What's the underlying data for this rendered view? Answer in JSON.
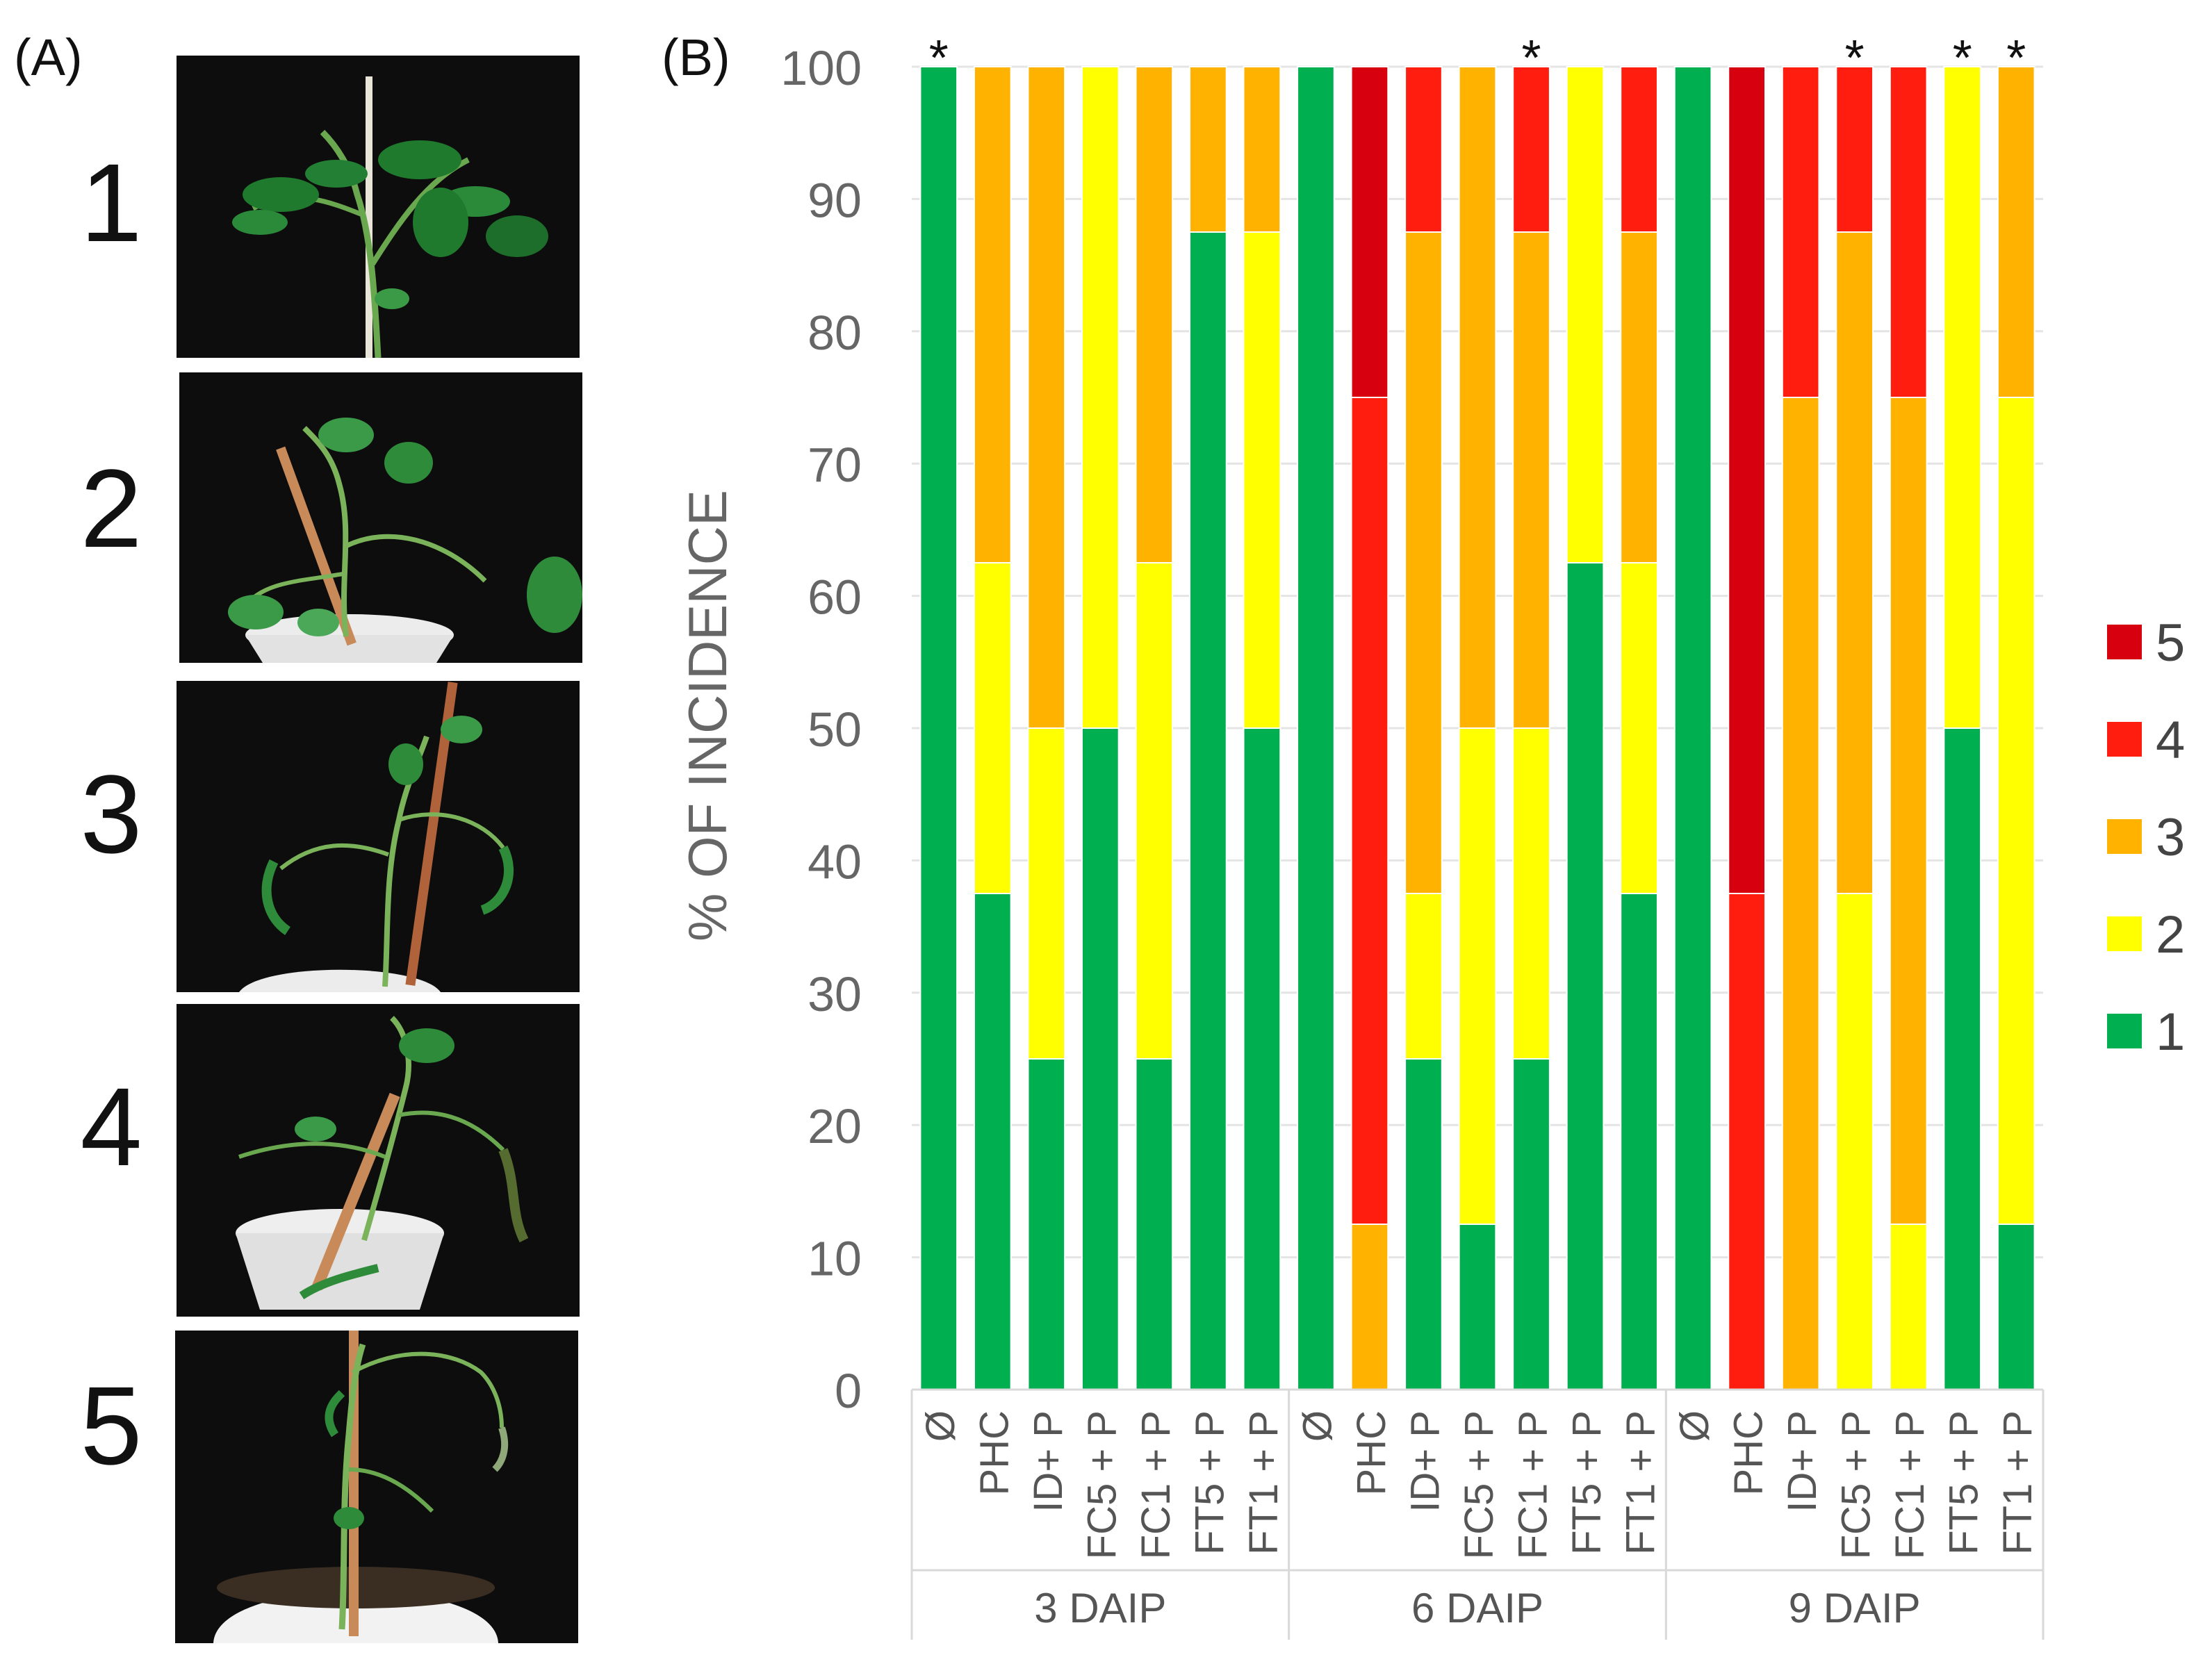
{
  "panel_a": {
    "label": "(A)",
    "scale_labels": [
      "1",
      "2",
      "3",
      "4",
      "5"
    ],
    "photo_icons": [
      "healthy-tomato-plant-photo",
      "slightly-wilted-tomato-plant-photo",
      "wilted-tomato-plant-photo",
      "severely-wilted-tomato-plant-photo",
      "dead-tomato-plant-photo"
    ]
  },
  "panel_b": {
    "label": "(B)"
  },
  "colors": {
    "5": "#d7000f",
    "4": "#ff1d10",
    "3": "#ffb300",
    "2": "#ffff00",
    "1": "#00b050"
  },
  "chart_data": {
    "type": "stacked-bar",
    "ylabel": "% OF INCIDENCE",
    "ylim": [
      0,
      100
    ],
    "yticks": [
      0,
      10,
      20,
      30,
      40,
      50,
      60,
      70,
      80,
      90,
      100
    ],
    "grid": true,
    "legend_position": "right",
    "legend": [
      "5",
      "4",
      "3",
      "2",
      "1"
    ],
    "groups": [
      {
        "name": "3 DAIP",
        "categories": [
          "Ø",
          "PHC",
          "ID+ P",
          "FC5 + P",
          "FC1 + P",
          "FT5 + P",
          "FT1 + P"
        ],
        "significant": [
          true,
          false,
          false,
          false,
          false,
          false,
          false
        ]
      },
      {
        "name": "6 DAIP",
        "categories": [
          "Ø",
          "PHC",
          "ID+ P",
          "FC5 + P",
          "FC1 + P",
          "FT5 + P",
          "FT1 + P"
        ],
        "significant": [
          false,
          false,
          false,
          false,
          true,
          false,
          false
        ]
      },
      {
        "name": "9 DAIP",
        "categories": [
          "Ø",
          "PHC",
          "ID+ P",
          "FC5 + P",
          "FC1 + P",
          "FT5 + P",
          "FT1 + P"
        ],
        "significant": [
          false,
          false,
          false,
          true,
          false,
          true,
          true
        ]
      }
    ],
    "series": [
      {
        "name": "1",
        "values": [
          100,
          37.5,
          25,
          50,
          25,
          87.5,
          50,
          100,
          0,
          25,
          12.5,
          25,
          62.5,
          37.5,
          100,
          0,
          0,
          0,
          0,
          50,
          12.5
        ]
      },
      {
        "name": "2",
        "values": [
          0,
          25,
          25,
          50,
          37.5,
          0,
          37.5,
          0,
          0,
          12.5,
          37.5,
          25,
          37.5,
          25,
          0,
          0,
          0,
          37.5,
          12.5,
          50,
          62.5
        ]
      },
      {
        "name": "3",
        "values": [
          0,
          37.5,
          50,
          0,
          37.5,
          12.5,
          12.5,
          0,
          12.5,
          50,
          50,
          37.5,
          0,
          25,
          0,
          0,
          75,
          50,
          62.5,
          0,
          25
        ]
      },
      {
        "name": "4",
        "values": [
          0,
          0,
          0,
          0,
          0,
          0,
          0,
          0,
          62.5,
          12.5,
          0,
          12.5,
          0,
          12.5,
          0,
          37.5,
          25,
          12.5,
          25,
          0,
          0
        ]
      },
      {
        "name": "5",
        "values": [
          0,
          0,
          0,
          0,
          0,
          0,
          0,
          0,
          25,
          0,
          0,
          0,
          0,
          0,
          0,
          62.5,
          0,
          0,
          0,
          0,
          0
        ]
      }
    ],
    "significance_marker": "*"
  }
}
